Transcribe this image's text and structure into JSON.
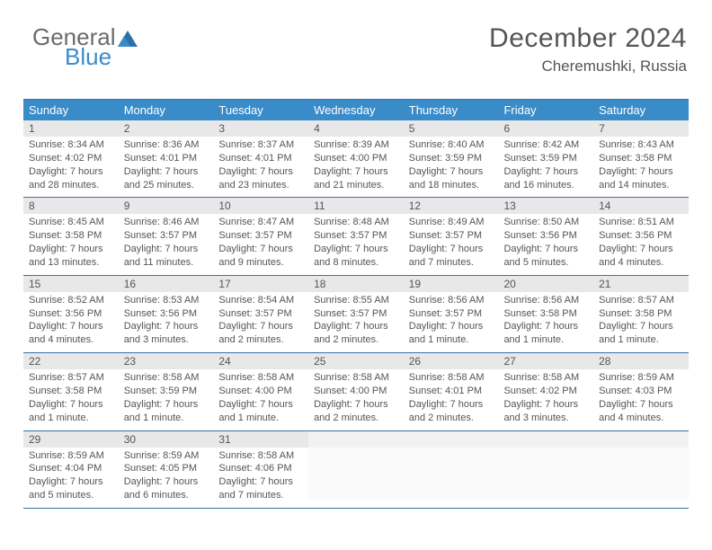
{
  "brand": {
    "part1": "General",
    "part2": "Blue"
  },
  "header": {
    "title": "December 2024",
    "location": "Cheremushki, Russia"
  },
  "colors": {
    "header_bg": "#3a8cc9",
    "header_text": "#ffffff",
    "border": "#3a71a8",
    "daynum_bg": "#e8e8e8",
    "text": "#555555"
  },
  "weekdays": [
    "Sunday",
    "Monday",
    "Tuesday",
    "Wednesday",
    "Thursday",
    "Friday",
    "Saturday"
  ],
  "weeks": [
    [
      {
        "n": "1",
        "sr": "Sunrise: 8:34 AM",
        "ss": "Sunset: 4:02 PM",
        "dl": "Daylight: 7 hours and 28 minutes."
      },
      {
        "n": "2",
        "sr": "Sunrise: 8:36 AM",
        "ss": "Sunset: 4:01 PM",
        "dl": "Daylight: 7 hours and 25 minutes."
      },
      {
        "n": "3",
        "sr": "Sunrise: 8:37 AM",
        "ss": "Sunset: 4:01 PM",
        "dl": "Daylight: 7 hours and 23 minutes."
      },
      {
        "n": "4",
        "sr": "Sunrise: 8:39 AM",
        "ss": "Sunset: 4:00 PM",
        "dl": "Daylight: 7 hours and 21 minutes."
      },
      {
        "n": "5",
        "sr": "Sunrise: 8:40 AM",
        "ss": "Sunset: 3:59 PM",
        "dl": "Daylight: 7 hours and 18 minutes."
      },
      {
        "n": "6",
        "sr": "Sunrise: 8:42 AM",
        "ss": "Sunset: 3:59 PM",
        "dl": "Daylight: 7 hours and 16 minutes."
      },
      {
        "n": "7",
        "sr": "Sunrise: 8:43 AM",
        "ss": "Sunset: 3:58 PM",
        "dl": "Daylight: 7 hours and 14 minutes."
      }
    ],
    [
      {
        "n": "8",
        "sr": "Sunrise: 8:45 AM",
        "ss": "Sunset: 3:58 PM",
        "dl": "Daylight: 7 hours and 13 minutes."
      },
      {
        "n": "9",
        "sr": "Sunrise: 8:46 AM",
        "ss": "Sunset: 3:57 PM",
        "dl": "Daylight: 7 hours and 11 minutes."
      },
      {
        "n": "10",
        "sr": "Sunrise: 8:47 AM",
        "ss": "Sunset: 3:57 PM",
        "dl": "Daylight: 7 hours and 9 minutes."
      },
      {
        "n": "11",
        "sr": "Sunrise: 8:48 AM",
        "ss": "Sunset: 3:57 PM",
        "dl": "Daylight: 7 hours and 8 minutes."
      },
      {
        "n": "12",
        "sr": "Sunrise: 8:49 AM",
        "ss": "Sunset: 3:57 PM",
        "dl": "Daylight: 7 hours and 7 minutes."
      },
      {
        "n": "13",
        "sr": "Sunrise: 8:50 AM",
        "ss": "Sunset: 3:56 PM",
        "dl": "Daylight: 7 hours and 5 minutes."
      },
      {
        "n": "14",
        "sr": "Sunrise: 8:51 AM",
        "ss": "Sunset: 3:56 PM",
        "dl": "Daylight: 7 hours and 4 minutes."
      }
    ],
    [
      {
        "n": "15",
        "sr": "Sunrise: 8:52 AM",
        "ss": "Sunset: 3:56 PM",
        "dl": "Daylight: 7 hours and 4 minutes."
      },
      {
        "n": "16",
        "sr": "Sunrise: 8:53 AM",
        "ss": "Sunset: 3:56 PM",
        "dl": "Daylight: 7 hours and 3 minutes."
      },
      {
        "n": "17",
        "sr": "Sunrise: 8:54 AM",
        "ss": "Sunset: 3:57 PM",
        "dl": "Daylight: 7 hours and 2 minutes."
      },
      {
        "n": "18",
        "sr": "Sunrise: 8:55 AM",
        "ss": "Sunset: 3:57 PM",
        "dl": "Daylight: 7 hours and 2 minutes."
      },
      {
        "n": "19",
        "sr": "Sunrise: 8:56 AM",
        "ss": "Sunset: 3:57 PM",
        "dl": "Daylight: 7 hours and 1 minute."
      },
      {
        "n": "20",
        "sr": "Sunrise: 8:56 AM",
        "ss": "Sunset: 3:58 PM",
        "dl": "Daylight: 7 hours and 1 minute."
      },
      {
        "n": "21",
        "sr": "Sunrise: 8:57 AM",
        "ss": "Sunset: 3:58 PM",
        "dl": "Daylight: 7 hours and 1 minute."
      }
    ],
    [
      {
        "n": "22",
        "sr": "Sunrise: 8:57 AM",
        "ss": "Sunset: 3:58 PM",
        "dl": "Daylight: 7 hours and 1 minute."
      },
      {
        "n": "23",
        "sr": "Sunrise: 8:58 AM",
        "ss": "Sunset: 3:59 PM",
        "dl": "Daylight: 7 hours and 1 minute."
      },
      {
        "n": "24",
        "sr": "Sunrise: 8:58 AM",
        "ss": "Sunset: 4:00 PM",
        "dl": "Daylight: 7 hours and 1 minute."
      },
      {
        "n": "25",
        "sr": "Sunrise: 8:58 AM",
        "ss": "Sunset: 4:00 PM",
        "dl": "Daylight: 7 hours and 2 minutes."
      },
      {
        "n": "26",
        "sr": "Sunrise: 8:58 AM",
        "ss": "Sunset: 4:01 PM",
        "dl": "Daylight: 7 hours and 2 minutes."
      },
      {
        "n": "27",
        "sr": "Sunrise: 8:58 AM",
        "ss": "Sunset: 4:02 PM",
        "dl": "Daylight: 7 hours and 3 minutes."
      },
      {
        "n": "28",
        "sr": "Sunrise: 8:59 AM",
        "ss": "Sunset: 4:03 PM",
        "dl": "Daylight: 7 hours and 4 minutes."
      }
    ],
    [
      {
        "n": "29",
        "sr": "Sunrise: 8:59 AM",
        "ss": "Sunset: 4:04 PM",
        "dl": "Daylight: 7 hours and 5 minutes."
      },
      {
        "n": "30",
        "sr": "Sunrise: 8:59 AM",
        "ss": "Sunset: 4:05 PM",
        "dl": "Daylight: 7 hours and 6 minutes."
      },
      {
        "n": "31",
        "sr": "Sunrise: 8:58 AM",
        "ss": "Sunset: 4:06 PM",
        "dl": "Daylight: 7 hours and 7 minutes."
      },
      {
        "n": "",
        "sr": "",
        "ss": "",
        "dl": "",
        "empty": true
      },
      {
        "n": "",
        "sr": "",
        "ss": "",
        "dl": "",
        "empty": true
      },
      {
        "n": "",
        "sr": "",
        "ss": "",
        "dl": "",
        "empty": true
      },
      {
        "n": "",
        "sr": "",
        "ss": "",
        "dl": "",
        "empty": true
      }
    ]
  ]
}
